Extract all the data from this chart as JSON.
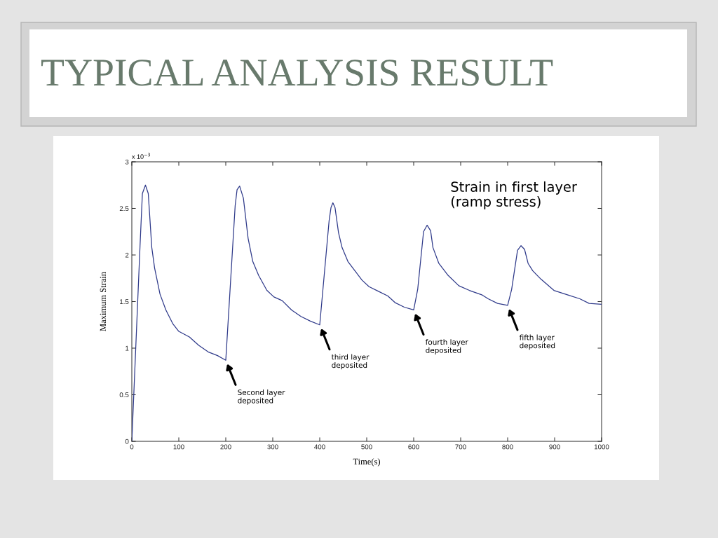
{
  "chart_data": {
    "type": "line",
    "title": "TYPICAL ANALYSIS RESULT",
    "xlabel": "Time(s)",
    "ylabel": "Maximum Strain",
    "x": [
      0,
      17.5,
      22.5,
      29,
      35,
      42.5,
      48.5,
      60,
      72.5,
      87.5,
      100,
      122.5,
      142.5,
      162.5,
      182.5,
      200,
      220,
      224,
      229.5,
      237.5,
      247.5,
      257.5,
      270,
      287.5,
      302.5,
      320,
      340,
      360,
      380,
      400,
      420,
      424,
      428,
      432.5,
      440,
      447.5,
      460,
      475,
      490,
      505,
      525,
      545,
      560,
      580,
      600,
      608.5,
      621,
      628.5,
      636,
      641,
      653.5,
      673.5,
      696,
      718.5,
      746,
      758.5,
      778.5,
      800,
      808.5,
      821,
      828.5,
      836,
      843.5,
      853.5,
      871,
      898.5,
      928.5,
      953.5,
      973.5,
      1000
    ],
    "series": [
      {
        "color": "#2f3a8a",
        "values": [
          0,
          2.1,
          2.66,
          2.75,
          2.66,
          2.08,
          1.86,
          1.58,
          1.41,
          1.26,
          1.18,
          1.12,
          1.03,
          0.96,
          0.92,
          0.87,
          2.53,
          2.7,
          2.74,
          2.61,
          2.18,
          1.93,
          1.78,
          1.62,
          1.55,
          1.51,
          1.41,
          1.34,
          1.29,
          1.25,
          2.37,
          2.51,
          2.56,
          2.51,
          2.24,
          2.08,
          1.93,
          1.83,
          1.73,
          1.66,
          1.61,
          1.56,
          1.49,
          1.44,
          1.41,
          1.63,
          2.25,
          2.32,
          2.26,
          2.08,
          1.91,
          1.78,
          1.67,
          1.62,
          1.57,
          1.53,
          1.48,
          1.46,
          1.63,
          2.05,
          2.1,
          2.06,
          1.91,
          1.83,
          1.74,
          1.62,
          1.57,
          1.53,
          1.48,
          1.47
        ]
      }
    ],
    "xlim": [
      0,
      1000
    ],
    "ylim": [
      0,
      3
    ],
    "xticks": [
      0,
      100,
      200,
      300,
      400,
      500,
      600,
      700,
      800,
      900,
      1000
    ],
    "yticks": [
      0,
      0.5,
      1,
      1.5,
      2,
      2.5,
      3
    ],
    "annotations": [
      "x 10$^{−3}$",
      "Strain in first layer\n(ramp stress)",
      {
        "text": "Second layer\ndeposited",
        "x": 200,
        "y": 0.87
      },
      {
        "text": "third layer\ndeposited",
        "x": 400,
        "y": 1.25
      },
      {
        "text": "fourth layer\ndeposited",
        "x": 600,
        "y": 1.41
      },
      {
        "text": "fifth layer\ndeposited",
        "x": 800,
        "y": 1.46
      }
    ]
  }
}
